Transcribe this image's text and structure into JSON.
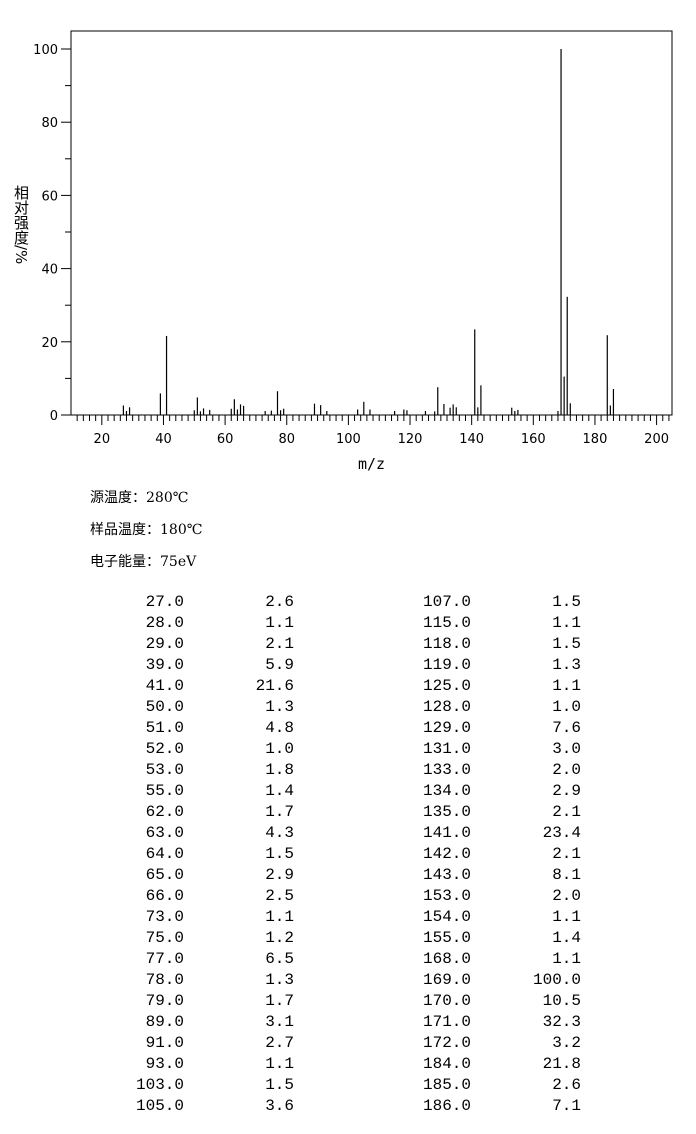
{
  "chart_data": {
    "type": "bar",
    "title": "",
    "xlabel": "m/z",
    "ylabel": "相对强度/%",
    "xlim": [
      10,
      205
    ],
    "ylim": [
      0,
      100
    ],
    "xticks": [
      20,
      40,
      60,
      80,
      100,
      120,
      140,
      160,
      180,
      200
    ],
    "yticks": [
      0,
      20,
      40,
      60,
      80,
      100
    ],
    "grid": false,
    "color": "#000000",
    "x": [
      27,
      28,
      29,
      39,
      41,
      50,
      51,
      52,
      53,
      55,
      62,
      63,
      64,
      65,
      66,
      73,
      75,
      77,
      78,
      79,
      89,
      91,
      93,
      103,
      105,
      107,
      115,
      118,
      119,
      125,
      128,
      129,
      131,
      133,
      134,
      135,
      141,
      142,
      143,
      153,
      154,
      155,
      168,
      169,
      170,
      171,
      172,
      184,
      185,
      186
    ],
    "values": [
      2.6,
      1.1,
      2.1,
      5.9,
      21.6,
      1.3,
      4.8,
      1.0,
      1.8,
      1.4,
      1.7,
      4.3,
      1.5,
      2.9,
      2.5,
      1.1,
      1.2,
      6.5,
      1.3,
      1.7,
      3.1,
      2.7,
      1.1,
      1.5,
      3.6,
      1.5,
      1.1,
      1.5,
      1.3,
      1.1,
      1.0,
      7.6,
      3.0,
      2.0,
      2.9,
      2.1,
      23.4,
      2.1,
      8.1,
      2.0,
      1.1,
      1.4,
      1.1,
      100.0,
      10.5,
      32.3,
      3.2,
      21.8,
      2.6,
      7.1
    ]
  },
  "info": {
    "source_temp": "源温度：280℃",
    "sample_temp": "样品温度：180℃",
    "electron_energy": "电子能量：75eV"
  },
  "table": {
    "rows": [
      [
        "27.0",
        "2.6",
        "107.0",
        "1.5"
      ],
      [
        "28.0",
        "1.1",
        "115.0",
        "1.1"
      ],
      [
        "29.0",
        "2.1",
        "118.0",
        "1.5"
      ],
      [
        "39.0",
        "5.9",
        "119.0",
        "1.3"
      ],
      [
        "41.0",
        "21.6",
        "125.0",
        "1.1"
      ],
      [
        "50.0",
        "1.3",
        "128.0",
        "1.0"
      ],
      [
        "51.0",
        "4.8",
        "129.0",
        "7.6"
      ],
      [
        "52.0",
        "1.0",
        "131.0",
        "3.0"
      ],
      [
        "53.0",
        "1.8",
        "133.0",
        "2.0"
      ],
      [
        "55.0",
        "1.4",
        "134.0",
        "2.9"
      ],
      [
        "62.0",
        "1.7",
        "135.0",
        "2.1"
      ],
      [
        "63.0",
        "4.3",
        "141.0",
        "23.4"
      ],
      [
        "64.0",
        "1.5",
        "142.0",
        "2.1"
      ],
      [
        "65.0",
        "2.9",
        "143.0",
        "8.1"
      ],
      [
        "66.0",
        "2.5",
        "153.0",
        "2.0"
      ],
      [
        "73.0",
        "1.1",
        "154.0",
        "1.1"
      ],
      [
        "75.0",
        "1.2",
        "155.0",
        "1.4"
      ],
      [
        "77.0",
        "6.5",
        "168.0",
        "1.1"
      ],
      [
        "78.0",
        "1.3",
        "169.0",
        "100.0"
      ],
      [
        "79.0",
        "1.7",
        "170.0",
        "10.5"
      ],
      [
        "89.0",
        "3.1",
        "171.0",
        "32.3"
      ],
      [
        "91.0",
        "2.7",
        "172.0",
        "3.2"
      ],
      [
        "93.0",
        "1.1",
        "184.0",
        "21.8"
      ],
      [
        "103.0",
        "1.5",
        "185.0",
        "2.6"
      ],
      [
        "105.0",
        "3.6",
        "186.0",
        "7.1"
      ]
    ]
  }
}
